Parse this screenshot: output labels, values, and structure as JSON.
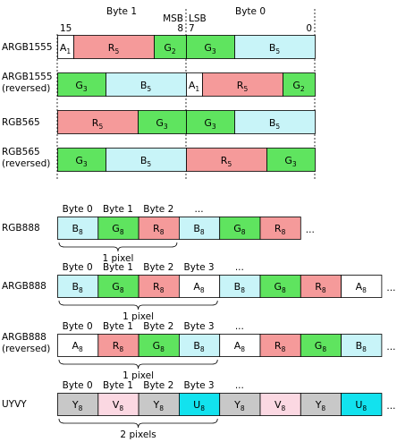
{
  "top": {
    "byte1": "Byte 1",
    "byte0": "Byte 0",
    "msb": "MSB",
    "lsb": "LSB",
    "bit15": "15",
    "bit8": "8",
    "bit7": "7",
    "bit0": "0"
  },
  "colors": {
    "red": "#F59A9A",
    "green": "#5FE45F",
    "blue": "#C8F4F8",
    "white": "#FFFFFF",
    "gray": "#C8C8C8",
    "pink": "#FBD8E2",
    "cyan": "#12E2EE"
  },
  "rows16": [
    {
      "label": [
        "ARGB1555"
      ],
      "cells": [
        {
          "t": "A",
          "s": "1",
          "c": "white"
        },
        {
          "t": "R",
          "s": "5",
          "c": "red"
        },
        {
          "t": "G",
          "s": "2",
          "c": "green"
        },
        {
          "t": "G",
          "s": "3",
          "c": "green"
        },
        {
          "t": "B",
          "s": "5",
          "c": "blue"
        }
      ]
    },
    {
      "label": [
        "ARGB1555",
        "(reversed)"
      ],
      "cells": [
        {
          "t": "G",
          "s": "3",
          "c": "green"
        },
        {
          "t": "B",
          "s": "5",
          "c": "blue"
        },
        {
          "t": "A",
          "s": "1",
          "c": "white"
        },
        {
          "t": "R",
          "s": "5",
          "c": "red"
        },
        {
          "t": "G",
          "s": "2",
          "c": "green"
        }
      ]
    },
    {
      "label": [
        "RGB565"
      ],
      "cells": [
        {
          "t": "R",
          "s": "5",
          "c": "red"
        },
        {
          "t": "G",
          "s": "3",
          "c": "green"
        },
        {
          "t": "G",
          "s": "3",
          "c": "green"
        },
        {
          "t": "B",
          "s": "5",
          "c": "blue"
        }
      ]
    },
    {
      "label": [
        "RGB565",
        "(reversed)"
      ],
      "cells": [
        {
          "t": "G",
          "s": "3",
          "c": "green"
        },
        {
          "t": "B",
          "s": "5",
          "c": "blue"
        },
        {
          "t": "R",
          "s": "5",
          "c": "red"
        },
        {
          "t": "G",
          "s": "3",
          "c": "green"
        }
      ]
    }
  ],
  "rowsByte": [
    {
      "label": [
        "RGB888"
      ],
      "headers": [
        "Byte 0",
        "Byte 1",
        "Byte 2",
        "..."
      ],
      "cells": [
        {
          "t": "B",
          "s": "8",
          "c": "blue"
        },
        {
          "t": "G",
          "s": "8",
          "c": "green"
        },
        {
          "t": "R",
          "s": "8",
          "c": "red"
        },
        {
          "t": "B",
          "s": "8",
          "c": "blue"
        },
        {
          "t": "G",
          "s": "8",
          "c": "green"
        },
        {
          "t": "R",
          "s": "8",
          "c": "red"
        }
      ],
      "ellipsis": "...",
      "brace": "1 pixel"
    },
    {
      "label": [
        "ARGB888"
      ],
      "headers": [
        "Byte 0",
        "Byte 1",
        "Byte 2",
        "Byte 3",
        "..."
      ],
      "cells": [
        {
          "t": "B",
          "s": "8",
          "c": "blue"
        },
        {
          "t": "G",
          "s": "8",
          "c": "green"
        },
        {
          "t": "R",
          "s": "8",
          "c": "red"
        },
        {
          "t": "A",
          "s": "8",
          "c": "white"
        },
        {
          "t": "B",
          "s": "8",
          "c": "blue"
        },
        {
          "t": "G",
          "s": "8",
          "c": "green"
        },
        {
          "t": "R",
          "s": "8",
          "c": "red"
        },
        {
          "t": "A",
          "s": "8",
          "c": "white"
        }
      ],
      "ellipsis": "...",
      "brace": "1 pixel"
    },
    {
      "label": [
        "ARGB888",
        "(reversed)"
      ],
      "headers": [
        "Byte 0",
        "Byte 1",
        "Byte 2",
        "Byte 3",
        "..."
      ],
      "cells": [
        {
          "t": "A",
          "s": "8",
          "c": "white"
        },
        {
          "t": "R",
          "s": "8",
          "c": "red"
        },
        {
          "t": "G",
          "s": "8",
          "c": "green"
        },
        {
          "t": "B",
          "s": "8",
          "c": "blue"
        },
        {
          "t": "A",
          "s": "8",
          "c": "white"
        },
        {
          "t": "R",
          "s": "8",
          "c": "red"
        },
        {
          "t": "G",
          "s": "8",
          "c": "green"
        },
        {
          "t": "B",
          "s": "8",
          "c": "blue"
        }
      ],
      "ellipsis": "...",
      "brace": "1 pixel"
    },
    {
      "label": [
        "UYVY"
      ],
      "headers": [
        "Byte 0",
        "Byte 1",
        "Byte 2",
        "Byte 3",
        "..."
      ],
      "cells": [
        {
          "t": "Y",
          "s": "8",
          "c": "gray"
        },
        {
          "t": "V",
          "s": "8",
          "c": "pink"
        },
        {
          "t": "Y",
          "s": "8",
          "c": "gray"
        },
        {
          "t": "U",
          "s": "8",
          "c": "cyan"
        },
        {
          "t": "Y",
          "s": "8",
          "c": "gray"
        },
        {
          "t": "V",
          "s": "8",
          "c": "pink"
        },
        {
          "t": "Y",
          "s": "8",
          "c": "gray"
        },
        {
          "t": "U",
          "s": "8",
          "c": "cyan"
        }
      ],
      "ellipsis": "...",
      "brace": "2 pixels"
    }
  ]
}
